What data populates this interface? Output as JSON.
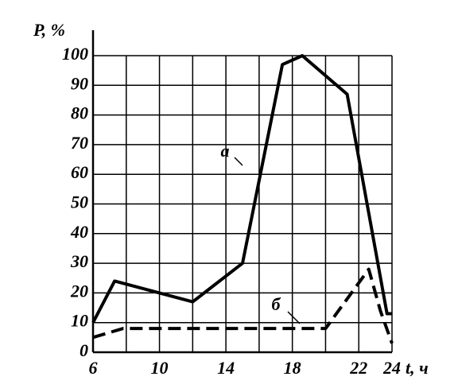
{
  "chart_data": {
    "type": "line",
    "y_label": "P, %",
    "x_label": "t, ч",
    "xlim": [
      6,
      24
    ],
    "xticks": [
      6,
      10,
      14,
      18,
      22,
      24
    ],
    "xgrid": [
      8,
      12,
      16,
      20
    ],
    "ylim": [
      0,
      100
    ],
    "yticks": [
      0,
      10,
      20,
      30,
      40,
      50,
      60,
      70,
      80,
      90,
      100
    ],
    "grid": true,
    "series": [
      {
        "name": "а",
        "color": "#000000",
        "dash": false,
        "x": [
          6,
          7.3,
          12,
          15,
          17.4,
          18.6,
          21.3,
          23.7,
          24
        ],
        "values": [
          10,
          24,
          17,
          30,
          97,
          100,
          87,
          13,
          13
        ]
      },
      {
        "name": "б",
        "color": "#000000",
        "dash": true,
        "x": [
          6,
          7.8,
          20,
          22.6,
          23.3,
          24
        ],
        "values": [
          5,
          8,
          8,
          28,
          14,
          3
        ]
      }
    ]
  }
}
